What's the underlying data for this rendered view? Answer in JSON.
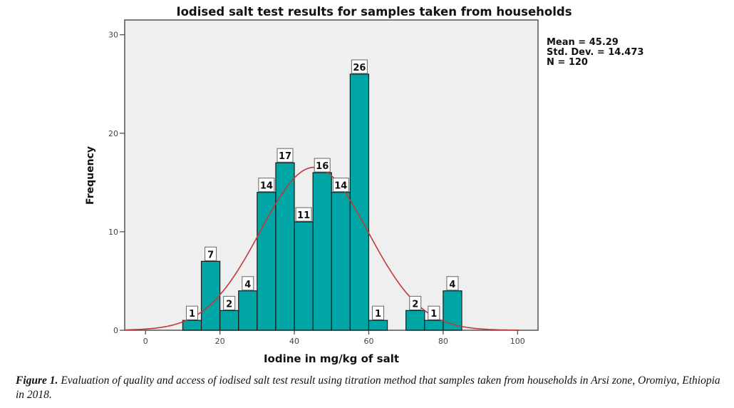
{
  "chart_data": {
    "type": "bar",
    "title": "Iodised salt test results for samples taken from households",
    "xlabel": "Iodine in mg/kg of salt",
    "ylabel": "Frequency",
    "xlim": [
      -5.6,
      105.5
    ],
    "ylim": [
      0,
      31.5
    ],
    "xticks": [
      "0",
      "20",
      "40",
      "60",
      "80",
      "100"
    ],
    "xtick_values": [
      0,
      20,
      40,
      60,
      80,
      100
    ],
    "yticks": [
      "0",
      "10",
      "20",
      "30"
    ],
    "ytick_values": [
      0,
      10,
      20,
      30
    ],
    "bin_width": 5,
    "bins": [
      {
        "start": 10,
        "end": 15,
        "value": 1,
        "label": "1"
      },
      {
        "start": 15,
        "end": 20,
        "value": 7,
        "label": "7"
      },
      {
        "start": 20,
        "end": 25,
        "value": 2,
        "label": "2"
      },
      {
        "start": 25,
        "end": 30,
        "value": 4,
        "label": "4"
      },
      {
        "start": 30,
        "end": 35,
        "value": 14,
        "label": "14"
      },
      {
        "start": 35,
        "end": 40,
        "value": 17,
        "label": "17"
      },
      {
        "start": 40,
        "end": 45,
        "value": 11,
        "label": "11"
      },
      {
        "start": 45,
        "end": 50,
        "value": 16,
        "label": "16"
      },
      {
        "start": 50,
        "end": 55,
        "value": 14,
        "label": "14"
      },
      {
        "start": 55,
        "end": 60,
        "value": 26,
        "label": "26"
      },
      {
        "start": 60,
        "end": 65,
        "value": 1,
        "label": "1"
      },
      {
        "start": 70,
        "end": 75,
        "value": 2,
        "label": "2"
      },
      {
        "start": 75,
        "end": 80,
        "value": 1,
        "label": "1"
      },
      {
        "start": 80,
        "end": 85,
        "value": 4,
        "label": "4"
      }
    ],
    "normal_curve": {
      "mean": 45.29,
      "std": 14.473,
      "n": 120
    },
    "stats": {
      "mean_label": "Mean = 45.29",
      "std_label": "Std. Dev. = 14.473",
      "n_label": "N = 120"
    },
    "grid": false,
    "colors": {
      "bar": "#00a6a6",
      "bar_edge": "#1a1a1a",
      "curve": "#c0393b",
      "plot_bg": "#efefef",
      "frame": "#555555"
    }
  },
  "caption": {
    "label": "Figure 1.",
    "text": " Evaluation of quality and access of iodised salt test result using titration method that samples taken from households in Arsi zone, Oromiya, Ethiopia in 2018."
  }
}
